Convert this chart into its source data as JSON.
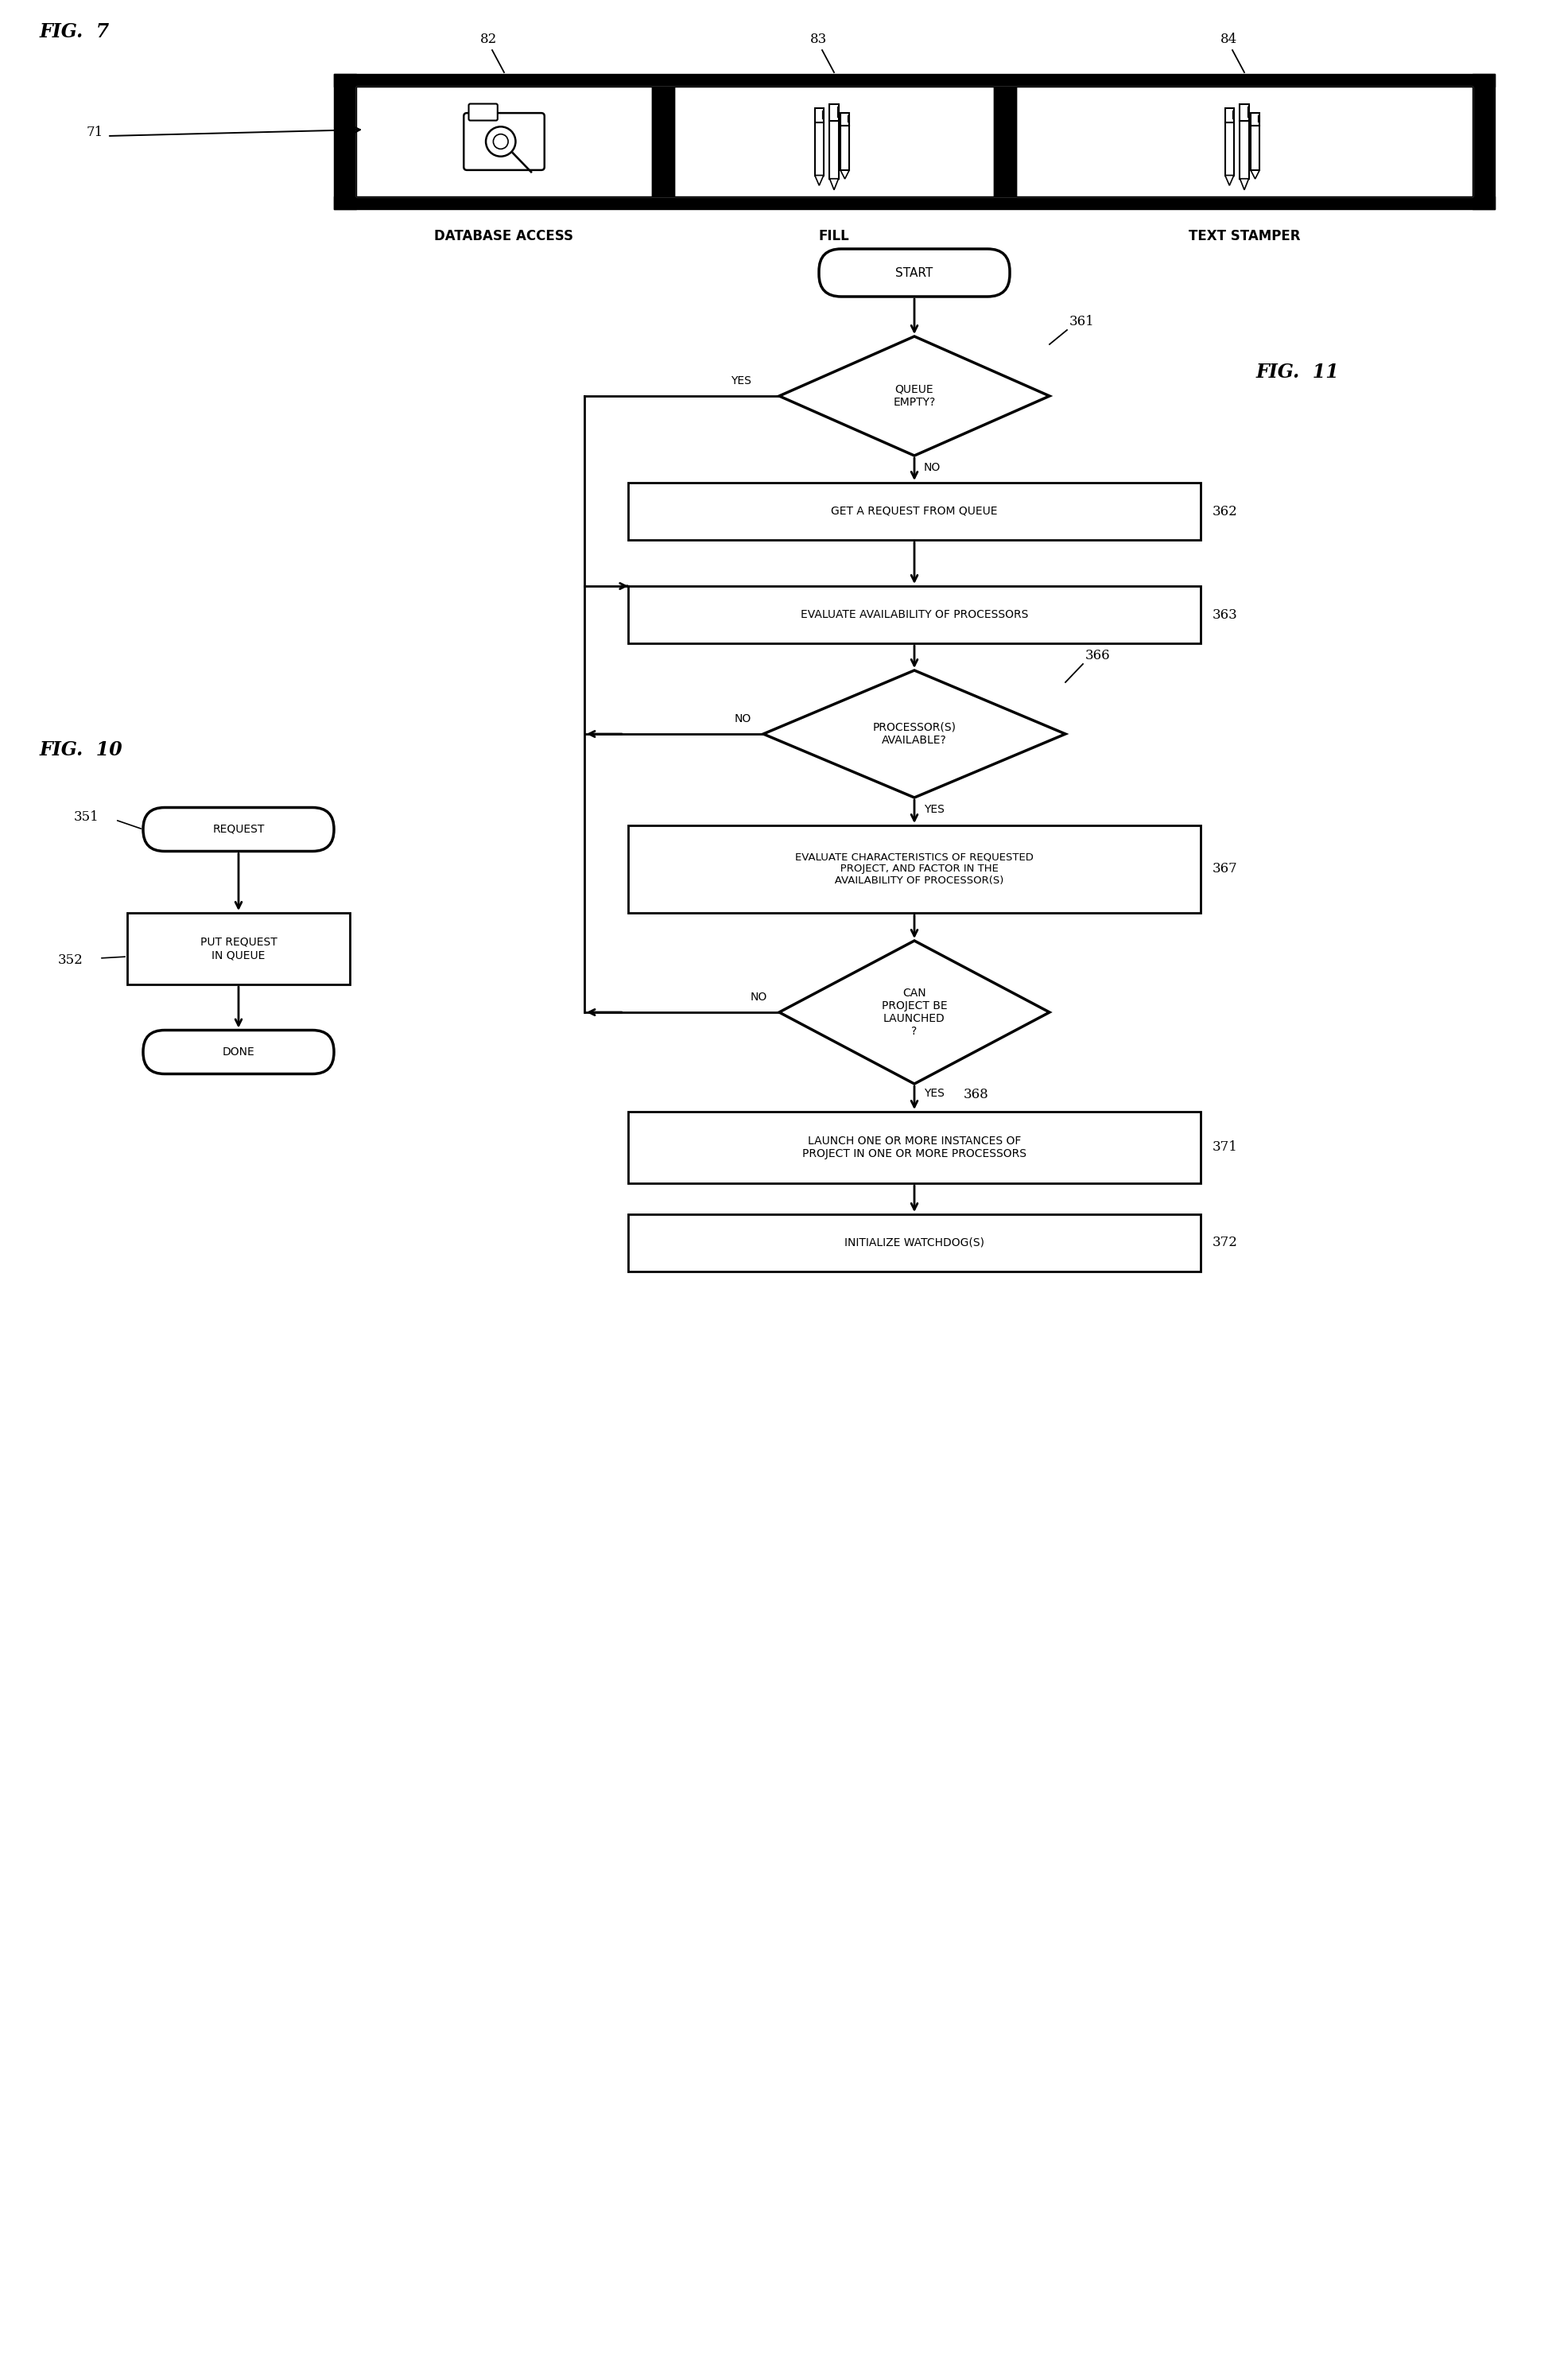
{
  "fig_width": 19.58,
  "fig_height": 29.93,
  "bg_color": "#ffffff",
  "fig7_label": "FIG.  7",
  "fig10_label": "FIG.  10",
  "fig11_label": "FIG.  11",
  "label_71": "71",
  "label_82": "82",
  "label_83": "83",
  "label_84": "84",
  "label_351": "351",
  "label_352": "352",
  "label_361": "361",
  "label_362": "362",
  "label_363": "363",
  "label_366": "366",
  "label_367": "367",
  "label_368": "368",
  "label_371": "371",
  "label_372": "372",
  "text_db_access": "DATABASE ACCESS",
  "text_fill": "FILL",
  "text_text_stamper": "TEXT STAMPER",
  "text_request": "REQUEST",
  "text_put_request": "PUT REQUEST\nIN QUEUE",
  "text_done": "DONE",
  "text_start": "START",
  "text_queue_empty": "QUEUE\nEMPTY?",
  "text_yes": "YES",
  "text_no": "NO",
  "text_get_request": "GET A REQUEST FROM QUEUE",
  "text_evaluate_avail": "EVALUATE AVAILABILITY OF PROCESSORS",
  "text_processor_avail": "PROCESSOR(S)\nAVAILABLE?",
  "text_evaluate_char": "EVALUATE CHARACTERISTICS OF REQUESTED\n   PROJECT, AND FACTOR IN THE\n   AVAILABILITY OF PROCESSOR(S)",
  "text_can_project": "CAN\nPROJECT BE\nLAUNCHED\n?",
  "text_launch": "LAUNCH ONE OR MORE INSTANCES OF\nPROJECT IN ONE OR MORE PROCESSORS",
  "text_init_watchdog": "INITIALIZE WATCHDOG(S)"
}
